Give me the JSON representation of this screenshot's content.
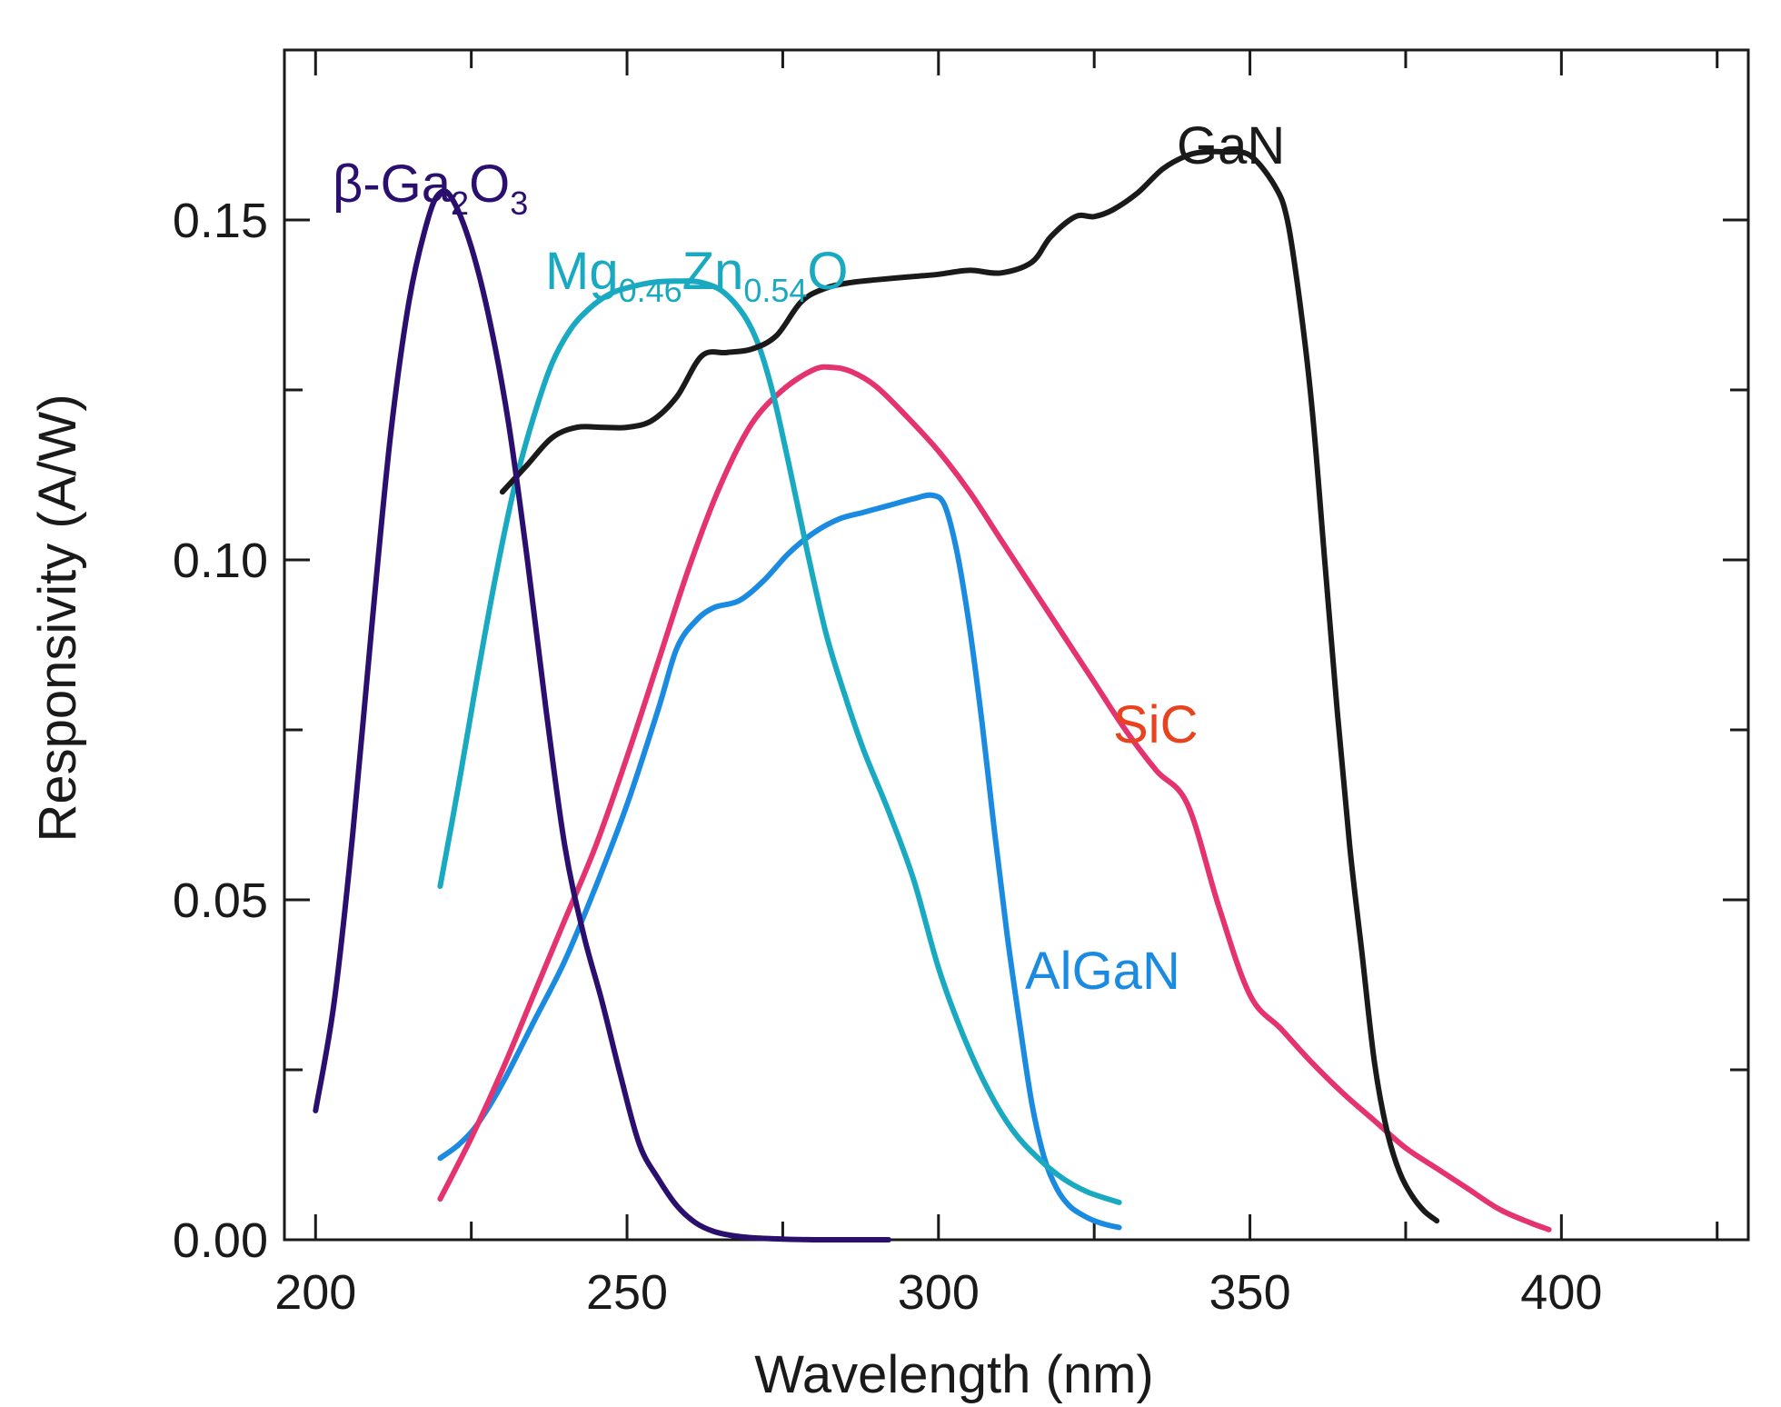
{
  "chart_data": {
    "type": "line",
    "title": "",
    "xlabel": "Wavelength (nm)",
    "ylabel": "Responsivity (A/W)",
    "xlim": [
      195,
      430
    ],
    "ylim": [
      0.0,
      0.175
    ],
    "x_ticks": [
      200,
      250,
      300,
      350,
      400
    ],
    "x_tick_labels": [
      "200",
      "250",
      "300",
      "350",
      "400"
    ],
    "x_minor_ticks": [
      225,
      275,
      325,
      375,
      425
    ],
    "y_ticks": [
      0.0,
      0.05,
      0.1,
      0.15
    ],
    "y_tick_labels": [
      "0.00",
      "0.05",
      "0.10",
      "0.15"
    ],
    "y_minor_ticks": [
      0.025,
      0.075,
      0.125,
      0.175
    ],
    "grid": false,
    "legend": "none",
    "series": [
      {
        "name": "β-Ga2O3",
        "label_main": "β-Ga",
        "label_sub1": "2",
        "label_mid": "O",
        "label_sub2": "3",
        "color": "#2a0f6e",
        "x": [
          200,
          203,
          206,
          209,
          212,
          215,
          218,
          220,
          222,
          225,
          228,
          231,
          234,
          237,
          240,
          243,
          246,
          249,
          252,
          255,
          258,
          261,
          264,
          267,
          270,
          275,
          280,
          285,
          290,
          292
        ],
        "y": [
          0.019,
          0.035,
          0.06,
          0.09,
          0.118,
          0.138,
          0.15,
          0.154,
          0.153,
          0.146,
          0.135,
          0.12,
          0.1,
          0.078,
          0.058,
          0.045,
          0.035,
          0.024,
          0.014,
          0.009,
          0.005,
          0.0025,
          0.0012,
          0.0006,
          0.0003,
          0.0001,
          0.0,
          0.0,
          0.0,
          0.0
        ]
      },
      {
        "name": "Mg0.46Zn0.54O",
        "label_main": "Mg",
        "label_sub1": "0.46",
        "label_mid": "Zn",
        "label_sub2": "0.54",
        "label_end": "O",
        "color": "#19aac2",
        "x": [
          220,
          223,
          226,
          229,
          232,
          235,
          238,
          241,
          244,
          247,
          250,
          254,
          258,
          262,
          266,
          270,
          273,
          276,
          279,
          282,
          285,
          288,
          292,
          296,
          300,
          304,
          308,
          312,
          316,
          320,
          324,
          329
        ],
        "y": [
          0.052,
          0.067,
          0.083,
          0.098,
          0.111,
          0.121,
          0.129,
          0.134,
          0.137,
          0.139,
          0.14,
          0.1408,
          0.141,
          0.1408,
          0.139,
          0.134,
          0.126,
          0.114,
          0.101,
          0.089,
          0.08,
          0.072,
          0.063,
          0.053,
          0.04,
          0.03,
          0.022,
          0.016,
          0.012,
          0.009,
          0.007,
          0.0055
        ]
      },
      {
        "name": "GaN",
        "label_main": "GaN",
        "color": "#1a1a1a",
        "x": [
          230,
          234,
          238,
          242,
          246,
          250,
          254,
          258,
          262,
          266,
          270,
          274,
          278,
          282,
          286,
          290,
          295,
          300,
          305,
          310,
          315,
          318,
          322,
          325,
          328,
          332,
          336,
          340,
          343,
          346,
          350,
          354,
          356,
          358,
          360,
          362,
          364,
          366,
          368,
          370,
          372,
          374,
          376,
          378,
          380
        ],
        "y": [
          0.11,
          0.114,
          0.118,
          0.1195,
          0.1195,
          0.1195,
          0.1205,
          0.124,
          0.13,
          0.1305,
          0.131,
          0.133,
          0.138,
          0.14,
          0.1408,
          0.1412,
          0.1416,
          0.142,
          0.1426,
          0.1422,
          0.1438,
          0.1475,
          0.1505,
          0.1505,
          0.1515,
          0.154,
          0.1575,
          0.1595,
          0.16,
          0.16,
          0.1595,
          0.155,
          0.15,
          0.138,
          0.122,
          0.1,
          0.078,
          0.058,
          0.042,
          0.026,
          0.016,
          0.01,
          0.0065,
          0.0042,
          0.0028
        ]
      },
      {
        "name": "SiC",
        "label_main": "SiC",
        "color": "#e4336e",
        "label_color": "#e8421e",
        "x": [
          220,
          225,
          230,
          235,
          240,
          245,
          250,
          255,
          260,
          265,
          270,
          275,
          280,
          283,
          286,
          290,
          295,
          300,
          305,
          310,
          315,
          320,
          325,
          330,
          335,
          340,
          345,
          350,
          355,
          360,
          365,
          370,
          375,
          380,
          385,
          390,
          395,
          398
        ],
        "y": [
          0.006,
          0.015,
          0.025,
          0.036,
          0.047,
          0.058,
          0.071,
          0.085,
          0.099,
          0.111,
          0.12,
          0.125,
          0.128,
          0.1283,
          0.1277,
          0.1255,
          0.121,
          0.116,
          0.11,
          0.103,
          0.096,
          0.089,
          0.082,
          0.075,
          0.069,
          0.064,
          0.049,
          0.036,
          0.031,
          0.026,
          0.0215,
          0.0175,
          0.0135,
          0.0105,
          0.0075,
          0.0045,
          0.0025,
          0.0015
        ]
      },
      {
        "name": "AlGaN",
        "label_main": "AlGaN",
        "color": "#1a8be0",
        "x": [
          220,
          223,
          226,
          230,
          235,
          240,
          245,
          250,
          255,
          258,
          261,
          264,
          268,
          272,
          276,
          280,
          284,
          288,
          292,
          296,
          299,
          301,
          303,
          305,
          307,
          309,
          311,
          313,
          315,
          317,
          319,
          321,
          323,
          325,
          327,
          329
        ],
        "y": [
          0.012,
          0.014,
          0.017,
          0.023,
          0.032,
          0.041,
          0.052,
          0.064,
          0.078,
          0.087,
          0.091,
          0.093,
          0.094,
          0.097,
          0.101,
          0.104,
          0.106,
          0.107,
          0.108,
          0.109,
          0.1095,
          0.108,
          0.101,
          0.09,
          0.076,
          0.06,
          0.045,
          0.032,
          0.02,
          0.012,
          0.0075,
          0.005,
          0.0037,
          0.0028,
          0.0022,
          0.0018
        ]
      }
    ]
  }
}
